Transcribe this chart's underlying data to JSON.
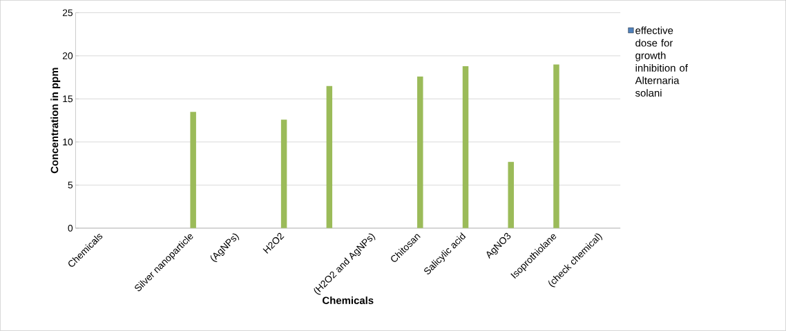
{
  "chart_data": {
    "type": "bar",
    "xlabel": "Chemicals",
    "ylabel": "Concentration in ppm",
    "categories": [
      "Chemicals",
      null,
      "Silver nanoparticle",
      "(AgNPs)",
      "H2O2",
      null,
      "(H2O2 and AgNPs)",
      "Chitosan",
      "Salicylic acid",
      "AgNO3",
      "Isoprothiolane",
      "(check chemical)"
    ],
    "series": [
      {
        "name": "effective dose for growth inhibition of Alternaria solani",
        "color": "#4f81bd",
        "values": [
          null,
          null,
          null,
          null,
          null,
          null,
          null,
          null,
          null,
          null,
          null,
          null
        ]
      },
      {
        "color": "#9bbb59",
        "values": [
          null,
          null,
          13.5,
          null,
          12.6,
          16.5,
          null,
          17.6,
          18.8,
          7.7,
          19.0,
          null
        ]
      }
    ],
    "ylim": [
      0,
      25
    ],
    "yticks": [
      0,
      5,
      10,
      15,
      20,
      25
    ],
    "grid": "y",
    "legend": "right"
  }
}
